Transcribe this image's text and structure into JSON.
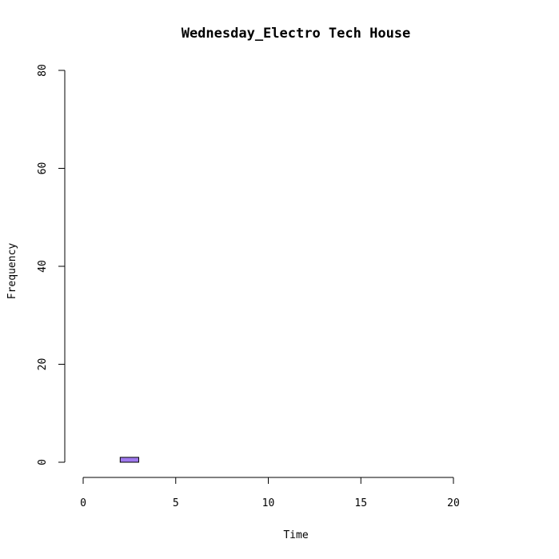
{
  "chart_data": {
    "type": "bar",
    "title": "Wednesday_Electro Tech House",
    "xlabel": "Time",
    "ylabel": "Frequency",
    "xlim": [
      0,
      24
    ],
    "ylim": [
      0,
      80
    ],
    "x_ticks": [
      0,
      5,
      10,
      15,
      20
    ],
    "y_ticks": [
      0,
      20,
      40,
      60,
      80
    ],
    "bin_width": 1,
    "bins": [
      {
        "start": 0,
        "end": 1,
        "count": 0
      },
      {
        "start": 1,
        "end": 2,
        "count": 0
      },
      {
        "start": 2,
        "end": 3,
        "count": 1
      },
      {
        "start": 3,
        "end": 4,
        "count": 0
      },
      {
        "start": 4,
        "end": 5,
        "count": 0
      },
      {
        "start": 5,
        "end": 6,
        "count": 0
      },
      {
        "start": 6,
        "end": 7,
        "count": 0
      },
      {
        "start": 7,
        "end": 8,
        "count": 0
      },
      {
        "start": 8,
        "end": 9,
        "count": 0
      },
      {
        "start": 9,
        "end": 10,
        "count": 0
      },
      {
        "start": 10,
        "end": 11,
        "count": 0
      },
      {
        "start": 11,
        "end": 12,
        "count": 0
      },
      {
        "start": 12,
        "end": 13,
        "count": 0
      },
      {
        "start": 13,
        "end": 14,
        "count": 0
      },
      {
        "start": 14,
        "end": 15,
        "count": 0
      },
      {
        "start": 15,
        "end": 16,
        "count": 0
      },
      {
        "start": 16,
        "end": 17,
        "count": 0
      },
      {
        "start": 17,
        "end": 18,
        "count": 0
      },
      {
        "start": 18,
        "end": 19,
        "count": 0
      },
      {
        "start": 19,
        "end": 20,
        "count": 0
      },
      {
        "start": 20,
        "end": 21,
        "count": 0
      },
      {
        "start": 21,
        "end": 22,
        "count": 0
      },
      {
        "start": 22,
        "end": 23,
        "count": 0
      },
      {
        "start": 23,
        "end": 24,
        "count": 0
      }
    ],
    "bar_color": "#9F79EE",
    "grid": false,
    "legend": "none"
  }
}
